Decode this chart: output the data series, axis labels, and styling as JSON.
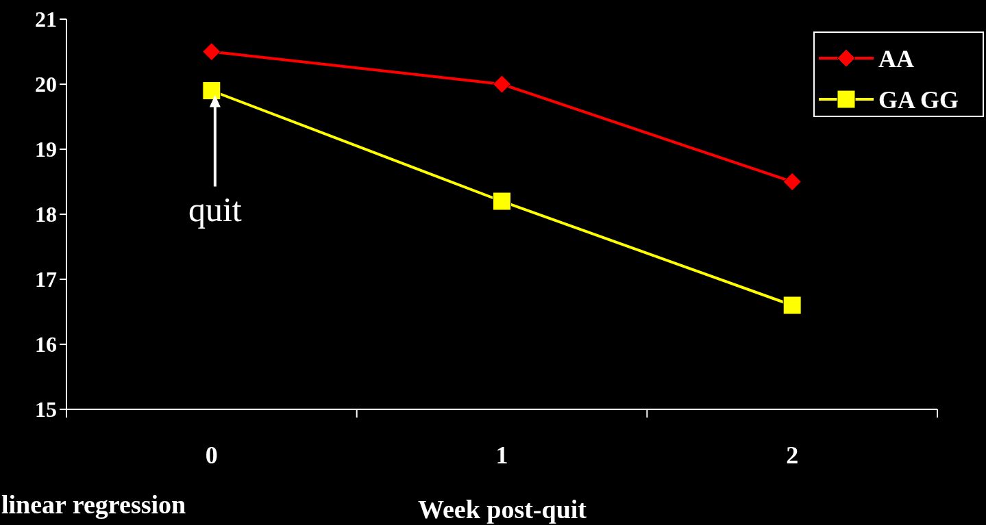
{
  "chart_data": {
    "type": "line",
    "xlabel": "Week post-quit",
    "categories": [
      "0",
      "1",
      "2"
    ],
    "series": [
      {
        "name": "AA",
        "color": "#ff0000",
        "values": [
          20.5,
          20.0,
          18.5
        ],
        "marker": "diamond"
      },
      {
        "name": "GA GG",
        "color": "#ffff00",
        "values": [
          19.9,
          18.2,
          16.6
        ],
        "marker": "square"
      }
    ],
    "ylim": [
      15,
      21
    ],
    "yticks": [
      15,
      16,
      17,
      18,
      19,
      20,
      21
    ],
    "legend": "top right",
    "annotations": [
      {
        "text": "quit",
        "x": "0",
        "y": 19.9
      },
      "linear regression"
    ]
  }
}
